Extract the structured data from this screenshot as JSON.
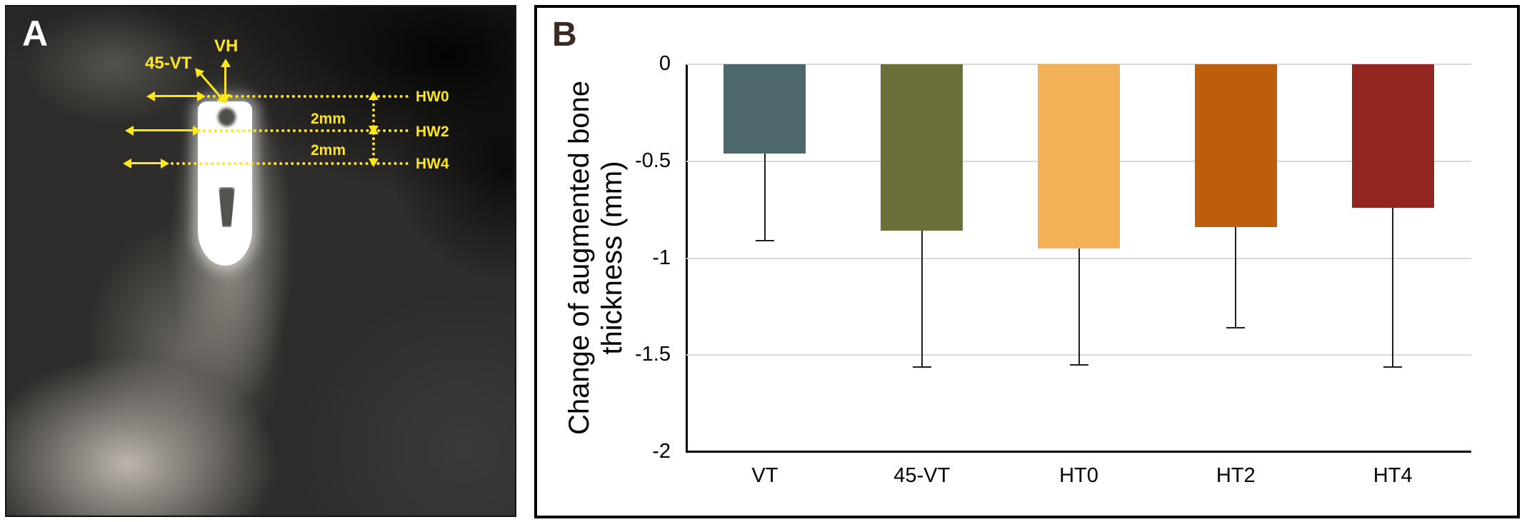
{
  "figure_labels": {
    "panel_a": "A",
    "panel_b": "B"
  },
  "panel_a": {
    "annotation_color": "#fde71c",
    "annotations": {
      "vh": "VH",
      "vt45": "45-VT",
      "hw0": "HW0",
      "hw2": "HW2",
      "hw4": "HW4",
      "dist_top": "2mm",
      "dist_bottom": "2mm"
    }
  },
  "chart_data": {
    "type": "bar",
    "title": "",
    "categories": [
      "VT",
      "45-VT",
      "HT0",
      "HT2",
      "HT4"
    ],
    "values": [
      -0.46,
      -0.86,
      -0.95,
      -0.84,
      -0.74
    ],
    "error_tips": [
      -0.91,
      -1.56,
      -1.55,
      -1.36,
      -1.56
    ],
    "bar_colors": [
      "#4d686a",
      "#6b7038",
      "#f2b057",
      "#bd5e0c",
      "#92251f"
    ],
    "xlabel": "",
    "ylabel": "Change of augmented bone thickness (mm)",
    "ylabel_line1": "Change of augmented bone",
    "ylabel_line2": "thickness (mm)",
    "ylim": [
      0,
      -2
    ],
    "yticks": [
      0,
      -0.5,
      -1,
      -1.5,
      -2
    ],
    "ytick_labels": [
      "0",
      "-0.5",
      "-1",
      "-1.5",
      "-2"
    ],
    "grid": true,
    "legend": "none",
    "error_bars": "lower only"
  }
}
